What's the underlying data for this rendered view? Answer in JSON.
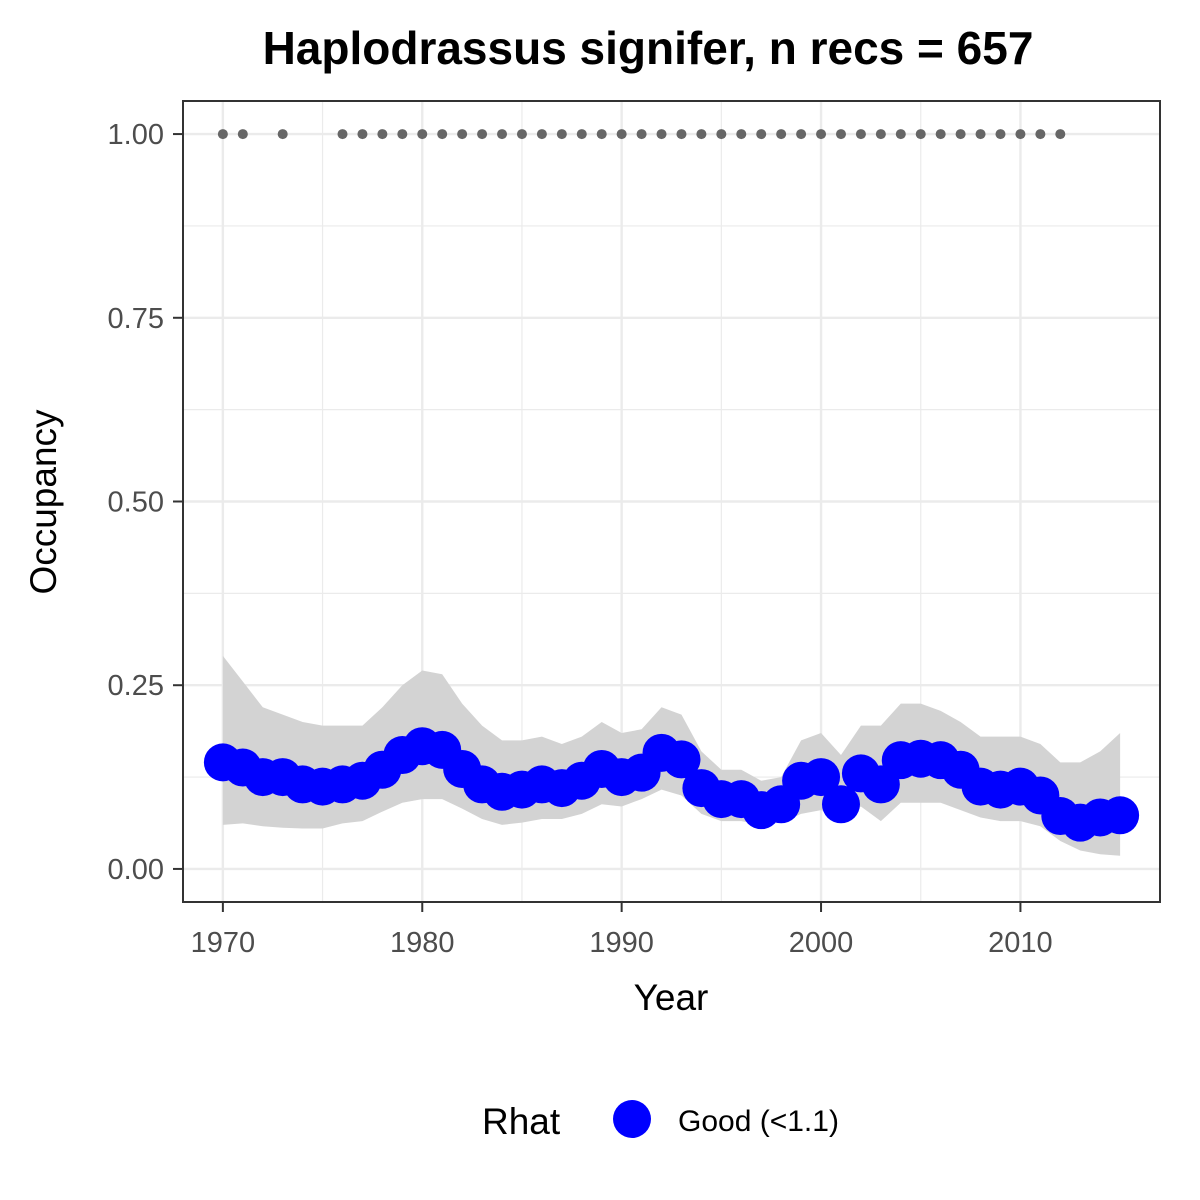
{
  "chart_data": {
    "type": "line",
    "title": "Haplodrassus signifer, n recs = 657",
    "xlabel": "Year",
    "ylabel": "Occupancy",
    "xlim": [
      1968,
      2017
    ],
    "ylim": [
      -0.045,
      1.045
    ],
    "x_ticks": [
      1970,
      1980,
      1990,
      2000,
      2010
    ],
    "x_tick_labels": [
      "1970",
      "1980",
      "1990",
      "2000",
      "2010"
    ],
    "y_ticks": [
      0,
      0.25,
      0.5,
      0.75,
      1
    ],
    "y_tick_labels": [
      "0.00",
      "0.25",
      "0.50",
      "0.75",
      "1.00"
    ],
    "grid": true,
    "legend": {
      "title": "Rhat",
      "position": "bottom",
      "entries": [
        {
          "label": "Good (<1.1)",
          "color": "#0000ff"
        }
      ]
    },
    "colors": {
      "series": "#0000ff",
      "ribbon": "#d3d3d3",
      "record_points": "#666666",
      "grid": "#ebebeb",
      "panel_border": "#333333"
    },
    "series": [
      {
        "x": [
          1970,
          1971,
          1972,
          1973,
          1974,
          1975,
          1976,
          1977,
          1978,
          1979,
          1980,
          1981,
          1982,
          1983,
          1984,
          1985,
          1986,
          1987,
          1988,
          1989,
          1990,
          1991,
          1992,
          1993,
          1994,
          1995,
          1996,
          1997,
          1998,
          1999,
          2000,
          2001,
          2002,
          2003,
          2004,
          2005,
          2006,
          2007,
          2008,
          2009,
          2010,
          2011,
          2012,
          2013,
          2014,
          2015
        ],
        "values": [
          0.145,
          0.138,
          0.125,
          0.125,
          0.115,
          0.112,
          0.115,
          0.12,
          0.135,
          0.155,
          0.167,
          0.162,
          0.136,
          0.115,
          0.105,
          0.108,
          0.115,
          0.11,
          0.12,
          0.136,
          0.125,
          0.131,
          0.158,
          0.149,
          0.11,
          0.095,
          0.095,
          0.08,
          0.088,
          0.12,
          0.125,
          0.088,
          0.13,
          0.115,
          0.148,
          0.15,
          0.148,
          0.135,
          0.112,
          0.108,
          0.112,
          0.1,
          0.072,
          0.063,
          0.07,
          0.073
        ],
        "lower": [
          0.06,
          0.062,
          0.058,
          0.056,
          0.055,
          0.055,
          0.062,
          0.065,
          0.078,
          0.09,
          0.095,
          0.095,
          0.082,
          0.068,
          0.06,
          0.063,
          0.068,
          0.068,
          0.075,
          0.088,
          0.085,
          0.095,
          0.108,
          0.1,
          0.075,
          0.065,
          0.065,
          0.06,
          0.063,
          0.075,
          0.08,
          0.07,
          0.085,
          0.065,
          0.09,
          0.09,
          0.09,
          0.08,
          0.07,
          0.065,
          0.065,
          0.058,
          0.038,
          0.025,
          0.02,
          0.018
        ],
        "upper": [
          0.29,
          0.255,
          0.22,
          0.21,
          0.2,
          0.195,
          0.195,
          0.195,
          0.22,
          0.25,
          0.27,
          0.265,
          0.225,
          0.195,
          0.175,
          0.175,
          0.18,
          0.17,
          0.18,
          0.2,
          0.185,
          0.19,
          0.22,
          0.21,
          0.16,
          0.135,
          0.135,
          0.12,
          0.125,
          0.175,
          0.185,
          0.155,
          0.195,
          0.195,
          0.225,
          0.225,
          0.215,
          0.2,
          0.18,
          0.18,
          0.18,
          0.17,
          0.145,
          0.145,
          0.16,
          0.185
        ]
      },
      {
        "x": [
          1970,
          1971,
          1973,
          1976,
          1977,
          1978,
          1979,
          1980,
          1981,
          1982,
          1983,
          1984,
          1985,
          1986,
          1987,
          1988,
          1989,
          1990,
          1991,
          1992,
          1993,
          1994,
          1995,
          1996,
          1997,
          1998,
          1999,
          2000,
          2001,
          2002,
          2003,
          2004,
          2005,
          2006,
          2007,
          2008,
          2009,
          2010,
          2011,
          2012
        ],
        "values": [
          1,
          1,
          1,
          1,
          1,
          1,
          1,
          1,
          1,
          1,
          1,
          1,
          1,
          1,
          1,
          1,
          1,
          1,
          1,
          1,
          1,
          1,
          1,
          1,
          1,
          1,
          1,
          1,
          1,
          1,
          1,
          1,
          1,
          1,
          1,
          1,
          1,
          1,
          1,
          1
        ]
      }
    ]
  }
}
